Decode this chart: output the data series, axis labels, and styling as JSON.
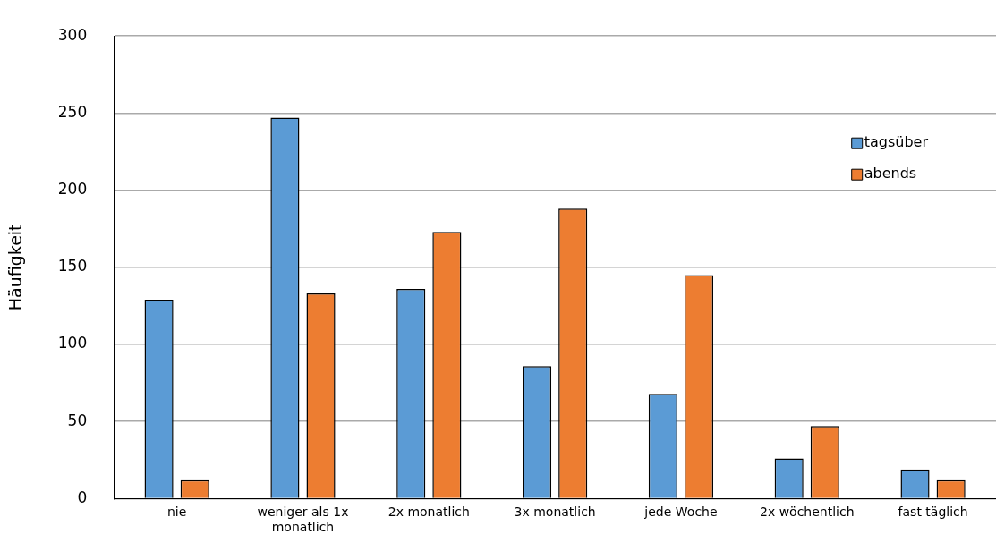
{
  "chart_data": {
    "type": "bar",
    "ylabel": "Häufigkeit",
    "categories": [
      "nie",
      "weniger als 1x monatlich",
      "2x monatlich",
      "3x monatlich",
      "jede Woche",
      "2x wöchentlich",
      "fast täglich"
    ],
    "series": [
      {
        "name": "tagsüber",
        "color": "#5b9bd5",
        "values": [
          129,
          247,
          136,
          86,
          68,
          26,
          19
        ]
      },
      {
        "name": "abends",
        "color": "#ed7d31",
        "values": [
          12,
          133,
          173,
          188,
          145,
          47,
          12
        ]
      }
    ],
    "ylim": [
      0,
      300
    ],
    "yticks": [
      0,
      50,
      100,
      150,
      200,
      250,
      300
    ],
    "grid": "y",
    "legend": "top right"
  }
}
